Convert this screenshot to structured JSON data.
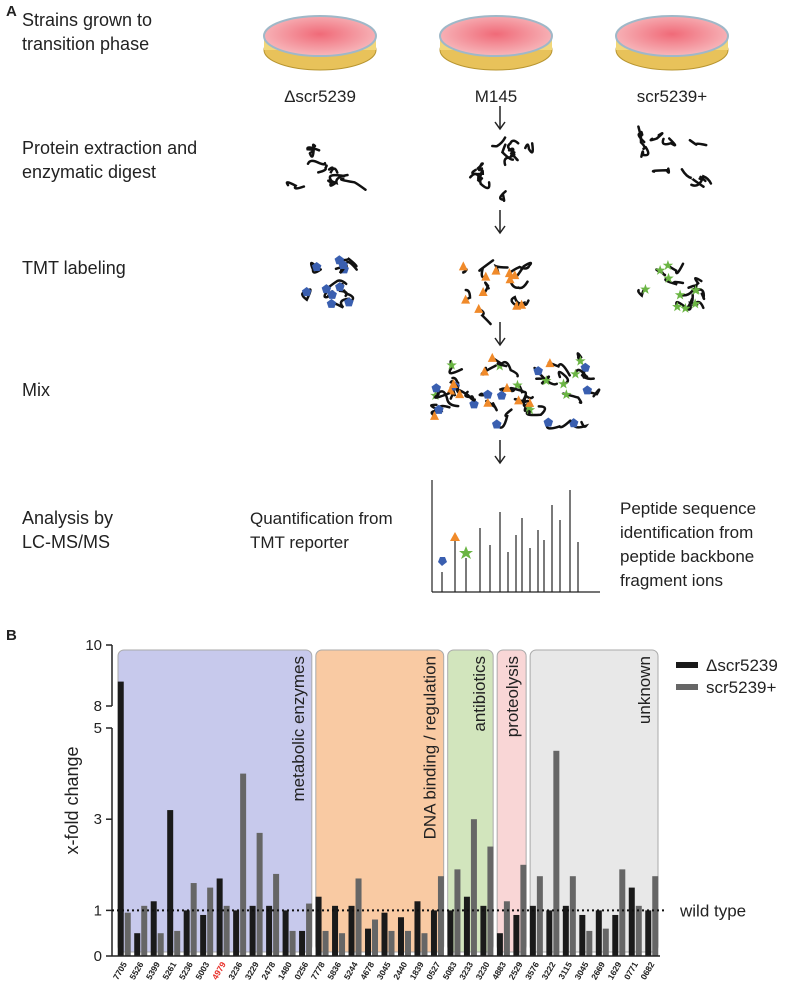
{
  "panel_a": {
    "label": "A",
    "steps": [
      [
        "Strains grown to",
        "transition phase"
      ],
      [
        "Protein extraction and",
        "enzymatic digest"
      ],
      [
        "TMT labeling"
      ],
      [
        "Mix"
      ],
      [
        "Analysis by",
        "LC-MS/MS"
      ]
    ],
    "strains": [
      "Δscr5239",
      "M145",
      "scr5239+"
    ],
    "analysis_left": [
      "Quantification from",
      "TMT reporter"
    ],
    "analysis_right": [
      "Peptide sequence",
      "identification from",
      "peptide backbone",
      "fragment ions"
    ]
  },
  "chart_data": {
    "type": "bar",
    "panel_label": "B",
    "ylabel": "x-fold change",
    "categories": [
      "7705",
      "5526",
      "5399",
      "5261",
      "5236",
      "5003",
      "4979",
      "3236",
      "3229",
      "2478",
      "1480",
      "0256",
      "7778",
      "5836",
      "5244",
      "4678",
      "3045",
      "2440",
      "1839",
      "0527",
      "5083",
      "3233",
      "3230",
      "4883",
      "2529",
      "3576",
      "3222",
      "3115",
      "3045",
      "2669",
      "1629",
      "0771",
      "0682"
    ],
    "highlight": {
      "category": 6,
      "color": "#e8302a"
    },
    "series": [
      {
        "name": "Δscr5239",
        "color": "#1a1a1a",
        "values": [
          8.8,
          0.5,
          1.2,
          3.2,
          1.0,
          0.9,
          1.7,
          1.0,
          1.1,
          1.1,
          1.0,
          0.55,
          1.3,
          1.1,
          1.1,
          0.6,
          0.95,
          0.85,
          1.2,
          1.0,
          1.0,
          1.3,
          1.1,
          0.5,
          0.9,
          1.1,
          1.0,
          1.1,
          0.9,
          1.0,
          0.9,
          1.5,
          1.0
        ]
      },
      {
        "name": "scr5239+",
        "color": "#666666",
        "values": [
          0.95,
          1.1,
          0.5,
          0.55,
          1.6,
          1.5,
          1.1,
          4.0,
          2.7,
          1.8,
          0.55,
          1.15,
          0.55,
          0.5,
          1.7,
          0.8,
          0.55,
          0.55,
          0.5,
          1.75,
          1.9,
          3.0,
          2.4,
          1.2,
          2.0,
          1.75,
          4.5,
          1.75,
          0.55,
          0.6,
          1.9,
          1.1,
          1.75
        ]
      }
    ],
    "groups": [
      {
        "label": "metabolic enzymes",
        "start": 0,
        "end": 11,
        "color": "#c7c9ec"
      },
      {
        "label": "DNA binding / regulation",
        "start": 12,
        "end": 19,
        "color": "#f9caa3"
      },
      {
        "label": "antibiotics",
        "start": 20,
        "end": 22,
        "color": "#d2e5bd"
      },
      {
        "label": "proteolysis",
        "start": 23,
        "end": 24,
        "color": "#f9d6d6"
      },
      {
        "label": "unknown",
        "start": 25,
        "end": 32,
        "color": "#e8e8e8"
      }
    ],
    "reference": {
      "value": 1,
      "label": "wild type"
    },
    "ylim": [
      0,
      10
    ],
    "ybreak": [
      5,
      8
    ],
    "yticks": [
      0,
      1,
      3,
      5,
      8,
      10
    ],
    "legend": "upper right"
  }
}
